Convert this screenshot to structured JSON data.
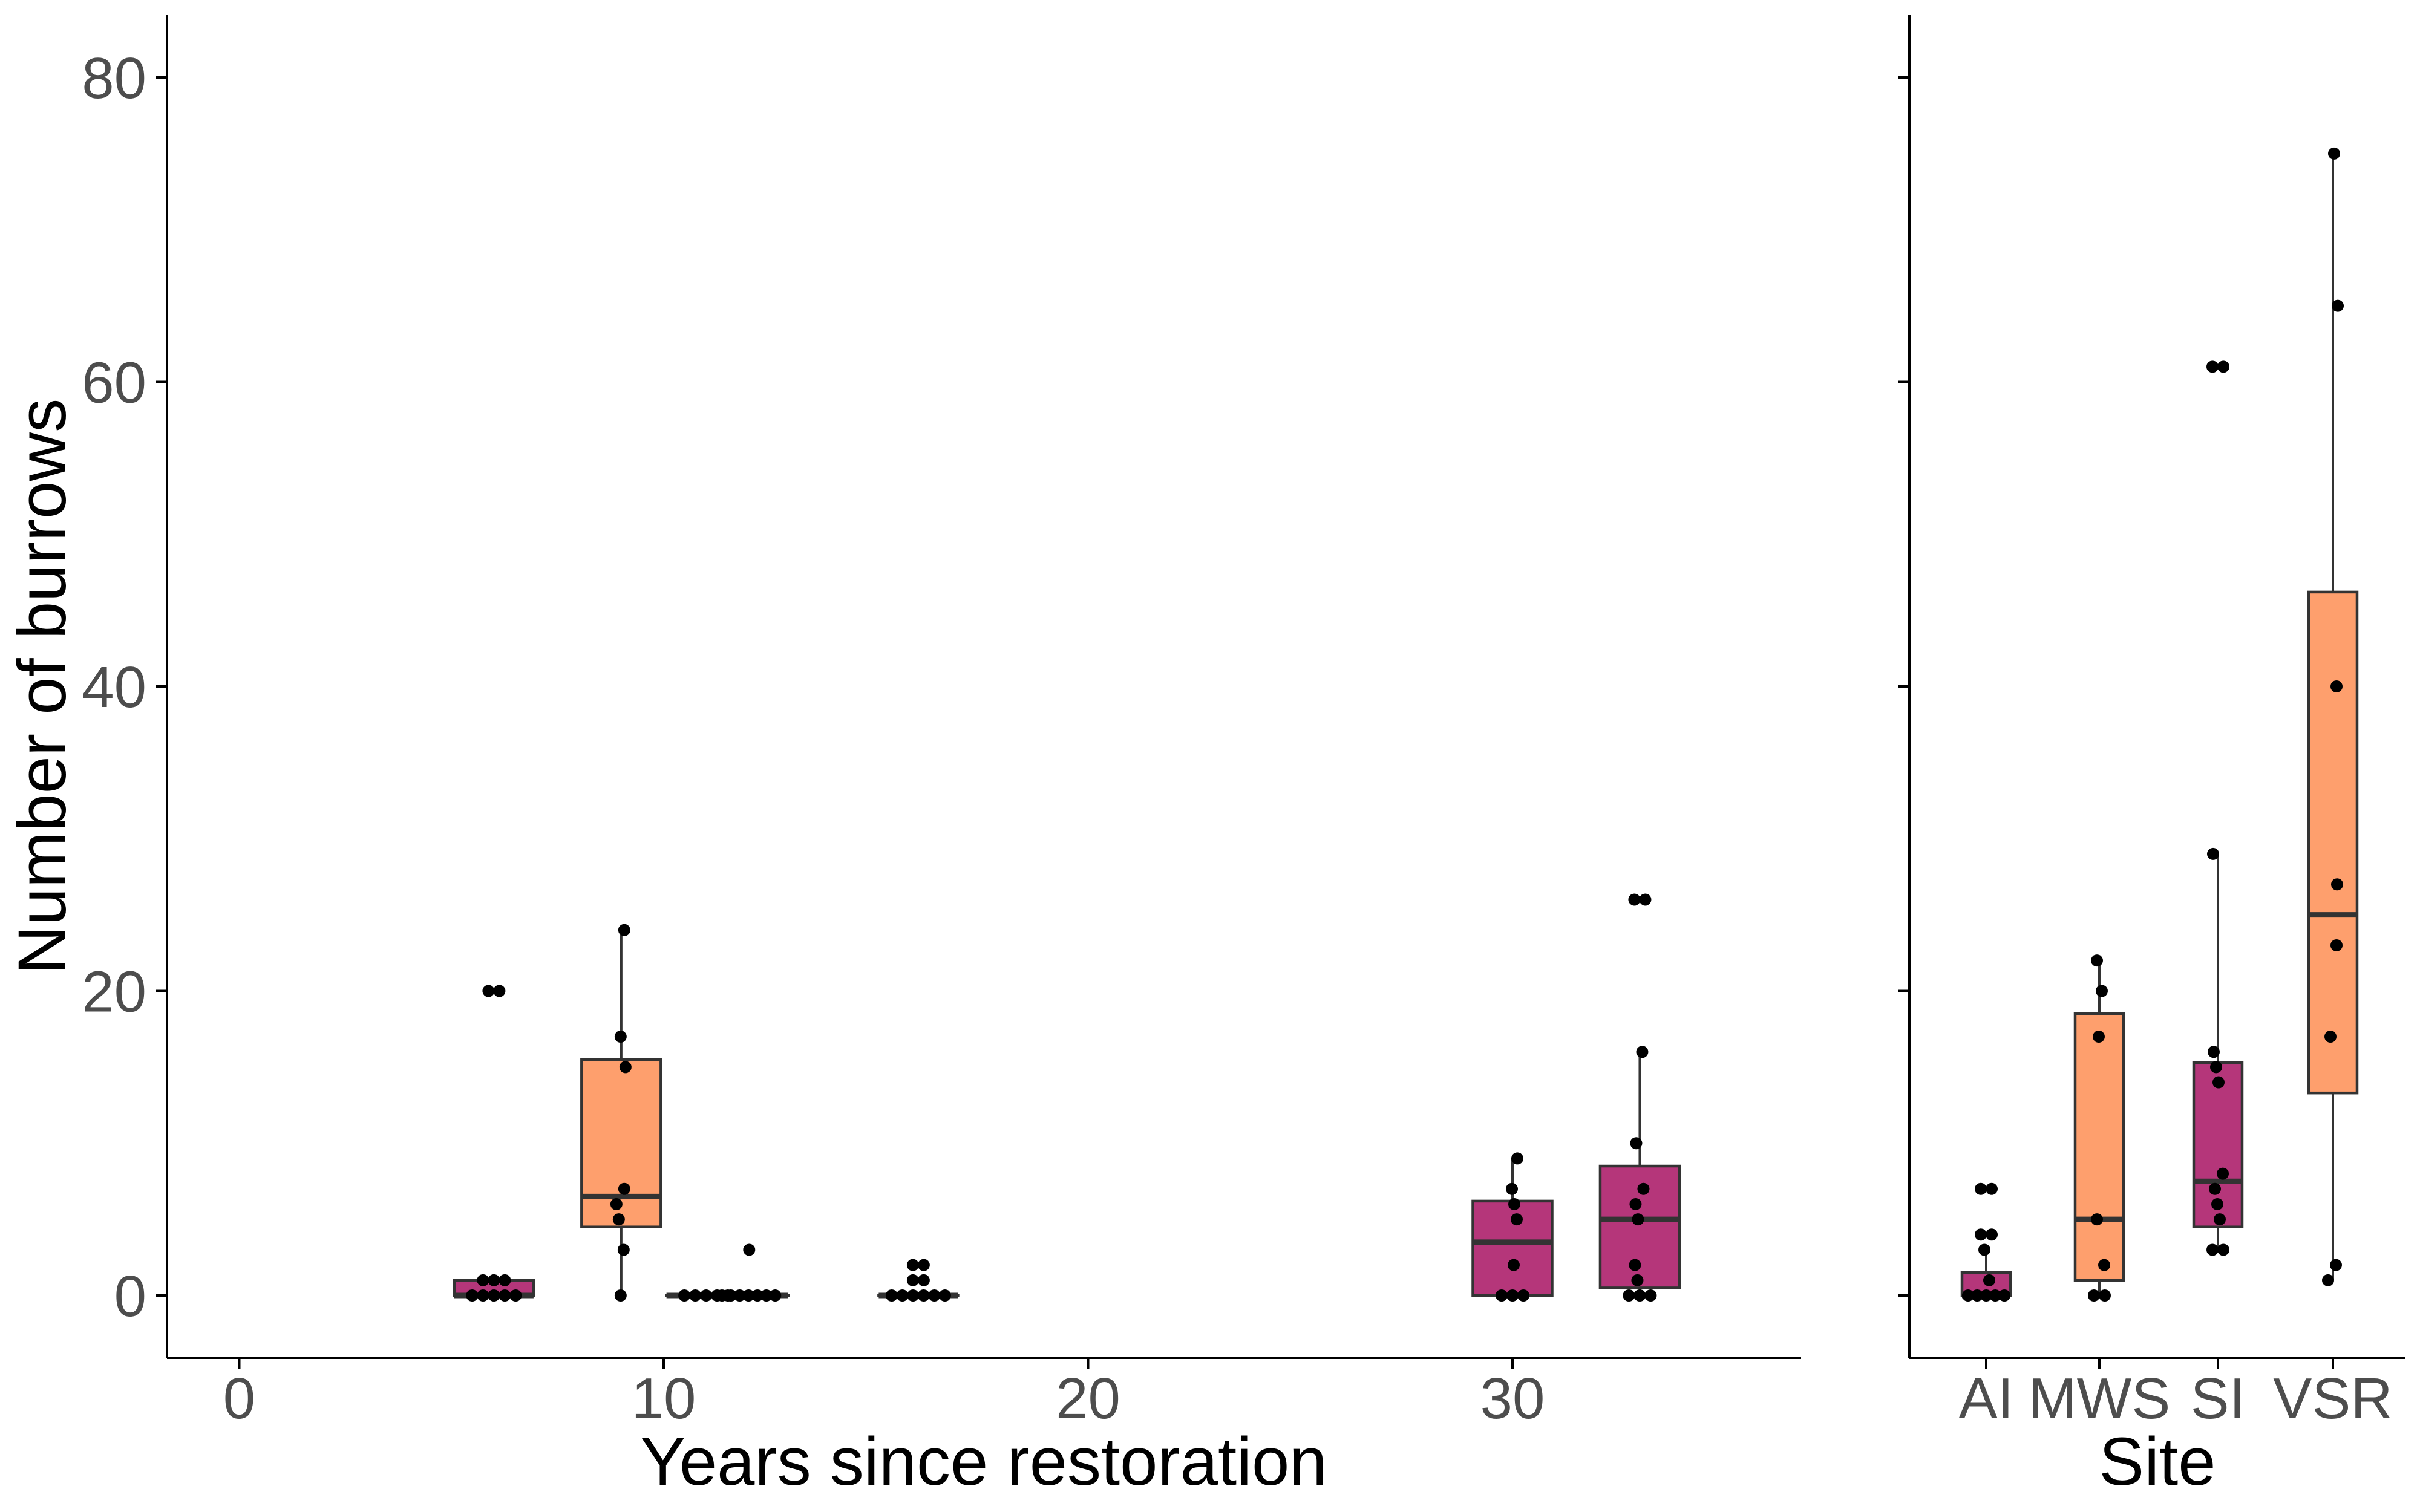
{
  "colors": {
    "magenta": "#B5367A",
    "orange": "#FE9F6D",
    "outline": "#333333",
    "point": "#000000"
  },
  "chart_data": [
    {
      "type": "box",
      "xlabel": "Years since restoration",
      "ylabel": "Number of burrows",
      "xlim": [
        -1.7,
        36.7
      ],
      "ylim": [
        -4,
        84
      ],
      "xticks": [
        0,
        10,
        20,
        30
      ],
      "yticks": [
        0,
        20,
        40,
        60,
        80
      ],
      "grid": false,
      "legend": "none",
      "boxes": [
        {
          "x": 6,
          "q1": 0,
          "median": 0,
          "q3": 1,
          "whisker_low": 0,
          "whisker_high": 1,
          "color": "magenta",
          "points": [
            0,
            0,
            0,
            0,
            0,
            1,
            1,
            1,
            20,
            20
          ]
        },
        {
          "x": 9,
          "q1": 4.5,
          "median": 6.5,
          "q3": 15.5,
          "whisker_low": 0,
          "whisker_high": 24,
          "color": "orange",
          "points": [
            0,
            3,
            5,
            6,
            7,
            15,
            17,
            24
          ]
        },
        {
          "x": 11,
          "q1": 0,
          "median": 0,
          "q3": 0,
          "whisker_low": 0,
          "whisker_high": 0,
          "color": "magenta",
          "points": [
            0,
            0,
            0,
            0,
            0
          ]
        },
        {
          "x": 12,
          "q1": 0,
          "median": 0,
          "q3": 0,
          "whisker_low": 0,
          "whisker_high": 0,
          "color": "magenta",
          "points": [
            0,
            0,
            0,
            0,
            0,
            0,
            0,
            3
          ]
        },
        {
          "x": 16,
          "q1": 0,
          "median": 0,
          "q3": 0,
          "whisker_low": 0,
          "whisker_high": 0,
          "color": "magenta",
          "points": [
            0,
            0,
            0,
            0,
            0,
            0,
            1,
            1,
            2,
            2
          ]
        },
        {
          "x": 30,
          "q1": 0,
          "median": 3.5,
          "q3": 6.2,
          "whisker_low": 0,
          "whisker_high": 9,
          "color": "magenta",
          "points": [
            0,
            0,
            0,
            2,
            5,
            6,
            7,
            9
          ]
        },
        {
          "x": 33,
          "q1": 0.5,
          "median": 5,
          "q3": 8.5,
          "whisker_low": 0,
          "whisker_high": 16,
          "color": "magenta",
          "points": [
            0,
            0,
            0,
            1,
            2,
            5,
            6,
            7,
            10,
            16,
            26,
            26
          ]
        }
      ]
    },
    {
      "type": "box",
      "xlabel": "Site",
      "ylabel": "",
      "categories": [
        "AI",
        "MWS",
        "SI",
        "VSR"
      ],
      "ylim": [
        -4,
        84
      ],
      "grid": false,
      "legend": "none",
      "boxes": [
        {
          "category": "AI",
          "q1": 0,
          "median": 0,
          "q3": 1.5,
          "whisker_low": 0,
          "whisker_high": 3,
          "color": "magenta",
          "points": [
            0,
            0,
            0,
            0,
            0,
            1,
            3,
            4,
            4,
            7,
            7
          ]
        },
        {
          "category": "MWS",
          "q1": 1,
          "median": 5,
          "q3": 18.5,
          "whisker_low": 0,
          "whisker_high": 22,
          "color": "orange",
          "points": [
            0,
            0,
            2,
            5,
            17,
            20,
            22
          ]
        },
        {
          "category": "SI",
          "q1": 4.5,
          "median": 7.5,
          "q3": 15.3,
          "whisker_low": 3,
          "whisker_high": 29,
          "color": "magenta",
          "points": [
            3,
            3,
            5,
            6,
            7,
            8,
            14,
            15,
            16,
            29,
            61,
            61
          ]
        },
        {
          "category": "VSR",
          "q1": 13.3,
          "median": 25,
          "q3": 46.2,
          "whisker_low": 1,
          "whisker_high": 75,
          "color": "orange",
          "points": [
            1,
            2,
            17,
            23,
            27,
            40,
            65,
            75
          ]
        }
      ]
    }
  ]
}
